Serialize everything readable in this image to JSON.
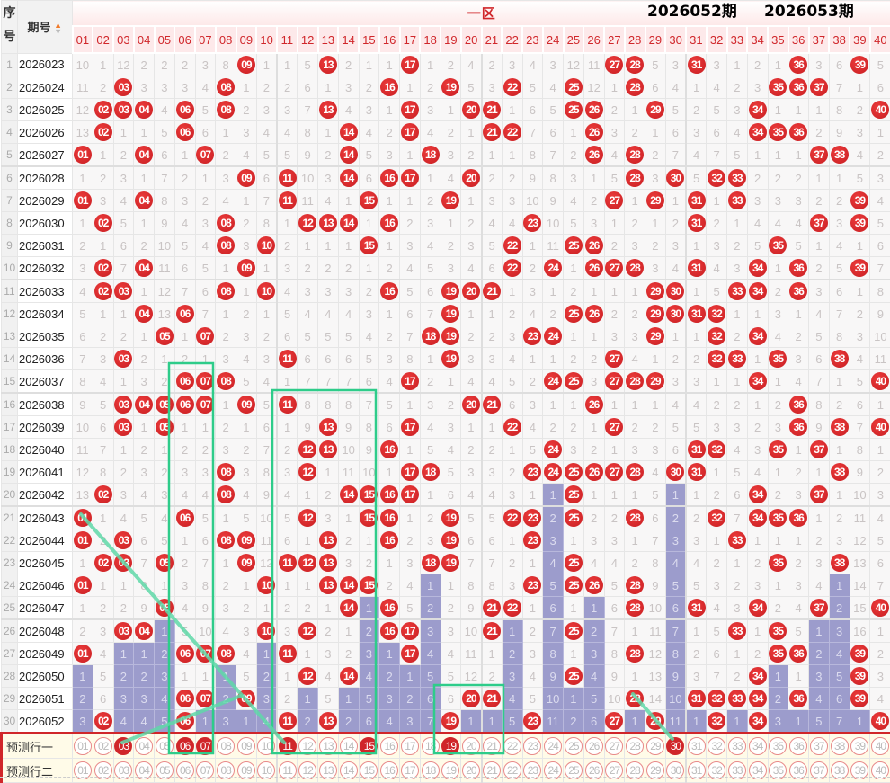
{
  "header": {
    "seq_label_top": "序",
    "seq_label_bottom": "号",
    "period_label": "期号",
    "zone_label": "一区",
    "columns": [
      "01",
      "02",
      "03",
      "04",
      "05",
      "06",
      "07",
      "08",
      "09",
      "10",
      "11",
      "12",
      "13",
      "14",
      "15",
      "16",
      "17",
      "18",
      "19",
      "20",
      "21",
      "22",
      "23",
      "24",
      "25",
      "26",
      "27",
      "28",
      "29",
      "30",
      "31",
      "32",
      "33",
      "34",
      "35",
      "36",
      "37",
      "38",
      "39",
      "40"
    ]
  },
  "rows": [
    {
      "seq": "1",
      "period": "2026023",
      "cells": [
        10,
        1,
        12,
        2,
        2,
        2,
        3,
        8,
        "09",
        1,
        1,
        5,
        "13",
        2,
        1,
        1,
        "17",
        1,
        2,
        4,
        2,
        3,
        4,
        3,
        12,
        11,
        "27",
        "28",
        5,
        3,
        "31",
        3,
        1,
        2,
        1,
        "36",
        3,
        6,
        "39",
        5
      ]
    },
    {
      "seq": "2",
      "period": "2026024",
      "cells": [
        11,
        2,
        "03",
        3,
        3,
        3,
        4,
        "08",
        1,
        2,
        2,
        6,
        1,
        3,
        2,
        "16",
        1,
        2,
        "19",
        5,
        3,
        "22",
        5,
        4,
        "25",
        12,
        1,
        "28",
        6,
        4,
        1,
        4,
        2,
        3,
        "35",
        "36",
        "37",
        7,
        1,
        6
      ]
    },
    {
      "seq": "3",
      "period": "2026025",
      "cells": [
        12,
        "02",
        "03",
        "04",
        4,
        "06",
        5,
        "08",
        2,
        3,
        3,
        7,
        "13",
        4,
        3,
        1,
        "17",
        3,
        1,
        "20",
        "21",
        1,
        6,
        5,
        "25",
        "26",
        2,
        1,
        "29",
        5,
        2,
        5,
        3,
        "34",
        1,
        1,
        1,
        8,
        2,
        "40"
      ]
    },
    {
      "seq": "4",
      "period": "2026026",
      "cells": [
        13,
        "02",
        1,
        1,
        5,
        "06",
        6,
        1,
        3,
        4,
        4,
        8,
        1,
        "14",
        4,
        2,
        "17",
        4,
        2,
        1,
        "21",
        "22",
        7,
        6,
        1,
        "26",
        3,
        2,
        1,
        6,
        3,
        6,
        4,
        "34",
        "35",
        "36",
        2,
        9,
        3,
        1
      ]
    },
    {
      "seq": "5",
      "period": "2026027",
      "cells": [
        "01",
        1,
        2,
        "04",
        6,
        1,
        "07",
        2,
        4,
        5,
        5,
        9,
        2,
        "14",
        5,
        3,
        1,
        "18",
        3,
        2,
        1,
        1,
        8,
        7,
        2,
        "26",
        4,
        "28",
        2,
        7,
        4,
        7,
        5,
        1,
        1,
        1,
        "37",
        "38",
        4,
        2
      ]
    },
    {
      "seq": "6",
      "period": "2026028",
      "cells": [
        1,
        2,
        3,
        1,
        7,
        2,
        1,
        3,
        "09",
        6,
        "11",
        10,
        3,
        "14",
        6,
        "16",
        "17",
        1,
        4,
        "20",
        2,
        2,
        9,
        8,
        3,
        1,
        5,
        "28",
        3,
        "30",
        5,
        "32",
        "33",
        2,
        2,
        2,
        1,
        1,
        5,
        3
      ]
    },
    {
      "seq": "7",
      "period": "2026029",
      "cells": [
        "01",
        3,
        4,
        "04",
        8,
        3,
        2,
        4,
        1,
        7,
        "11",
        11,
        4,
        1,
        "15",
        1,
        1,
        2,
        "19",
        1,
        3,
        3,
        10,
        9,
        4,
        2,
        "27",
        1,
        "29",
        1,
        "31",
        1,
        "33",
        3,
        3,
        3,
        2,
        2,
        "39",
        4
      ]
    },
    {
      "seq": "8",
      "period": "2026030",
      "cells": [
        1,
        "02",
        5,
        1,
        9,
        4,
        3,
        "08",
        2,
        8,
        1,
        "12",
        "13",
        "14",
        1,
        "16",
        2,
        3,
        1,
        2,
        4,
        4,
        "23",
        10,
        5,
        3,
        1,
        2,
        1,
        2,
        "31",
        2,
        1,
        4,
        4,
        4,
        "37",
        3,
        "39",
        5
      ]
    },
    {
      "seq": "9",
      "period": "2026031",
      "cells": [
        2,
        1,
        6,
        2,
        10,
        5,
        4,
        "08",
        3,
        "10",
        2,
        1,
        1,
        1,
        "15",
        1,
        3,
        4,
        2,
        3,
        5,
        "22",
        1,
        11,
        "25",
        "26",
        2,
        3,
        2,
        3,
        1,
        3,
        2,
        5,
        "35",
        5,
        1,
        4,
        1,
        6
      ]
    },
    {
      "seq": "10",
      "period": "2026032",
      "cells": [
        3,
        "02",
        7,
        "04",
        11,
        6,
        5,
        1,
        "09",
        1,
        3,
        2,
        2,
        2,
        1,
        2,
        4,
        5,
        3,
        4,
        6,
        "22",
        2,
        "24",
        1,
        "26",
        "27",
        "28",
        3,
        4,
        "31",
        4,
        3,
        "34",
        1,
        "36",
        2,
        5,
        "39",
        7
      ]
    },
    {
      "seq": "11",
      "period": "2026033",
      "cells": [
        4,
        "02",
        "03",
        1,
        12,
        7,
        6,
        "08",
        1,
        "10",
        4,
        3,
        3,
        3,
        2,
        "16",
        5,
        6,
        "19",
        "20",
        "21",
        1,
        3,
        1,
        2,
        1,
        1,
        1,
        "29",
        "30",
        1,
        5,
        "33",
        "34",
        2,
        "36",
        3,
        6,
        1,
        8
      ]
    },
    {
      "seq": "12",
      "period": "2026034",
      "cells": [
        5,
        1,
        1,
        "04",
        13,
        "06",
        7,
        1,
        2,
        1,
        5,
        4,
        4,
        4,
        3,
        1,
        6,
        7,
        "19",
        1,
        1,
        2,
        4,
        2,
        "25",
        "26",
        2,
        2,
        "29",
        "30",
        "31",
        "32",
        1,
        1,
        3,
        1,
        4,
        7,
        2,
        9
      ]
    },
    {
      "seq": "13",
      "period": "2026035",
      "cells": [
        6,
        2,
        2,
        1,
        "05",
        1,
        "07",
        2,
        3,
        2,
        6,
        5,
        5,
        5,
        4,
        2,
        7,
        "18",
        "19",
        2,
        2,
        3,
        "23",
        "24",
        1,
        1,
        3,
        3,
        "29",
        1,
        1,
        "32",
        2,
        "34",
        4,
        2,
        5,
        8,
        3,
        10
      ]
    },
    {
      "seq": "14",
      "period": "2026036",
      "cells": [
        7,
        3,
        "03",
        2,
        1,
        2,
        1,
        3,
        4,
        3,
        "11",
        6,
        6,
        6,
        5,
        3,
        8,
        1,
        "19",
        3,
        3,
        4,
        1,
        1,
        2,
        2,
        "27",
        4,
        1,
        2,
        2,
        "32",
        "33",
        1,
        "35",
        3,
        6,
        "38",
        4,
        11
      ]
    },
    {
      "seq": "15",
      "period": "2026037",
      "cells": [
        8,
        4,
        1,
        3,
        2,
        "06",
        "07",
        "08",
        5,
        4,
        1,
        7,
        7,
        7,
        6,
        4,
        "17",
        2,
        1,
        4,
        4,
        5,
        2,
        "24",
        "25",
        3,
        "27",
        "28",
        "29",
        3,
        3,
        1,
        1,
        "34",
        1,
        4,
        7,
        1,
        5,
        "40"
      ]
    },
    {
      "seq": "16",
      "period": "2026038",
      "cells": [
        9,
        5,
        "03",
        "04",
        "05",
        "06",
        "07",
        1,
        "09",
        5,
        "11",
        8,
        8,
        8,
        7,
        5,
        1,
        3,
        2,
        "20",
        "21",
        6,
        3,
        1,
        1,
        "26",
        1,
        1,
        1,
        4,
        4,
        2,
        2,
        1,
        2,
        "36",
        8,
        2,
        6,
        1
      ]
    },
    {
      "seq": "17",
      "period": "2026039",
      "cells": [
        10,
        6,
        "03",
        1,
        "05",
        1,
        1,
        2,
        1,
        6,
        1,
        9,
        "13",
        9,
        8,
        6,
        "17",
        4,
        3,
        1,
        1,
        "22",
        4,
        2,
        2,
        1,
        "27",
        2,
        2,
        5,
        5,
        3,
        3,
        2,
        3,
        "36",
        9,
        "38",
        7,
        "40"
      ]
    },
    {
      "seq": "18",
      "period": "2026040",
      "cells": [
        11,
        7,
        1,
        2,
        1,
        2,
        2,
        3,
        2,
        7,
        2,
        "12",
        "13",
        10,
        9,
        "16",
        1,
        5,
        4,
        2,
        2,
        1,
        5,
        "24",
        3,
        2,
        1,
        3,
        3,
        6,
        "31",
        "32",
        4,
        3,
        "35",
        1,
        "37",
        1,
        8,
        1
      ]
    },
    {
      "seq": "19",
      "period": "2026041",
      "cells": [
        12,
        8,
        2,
        3,
        2,
        3,
        3,
        "08",
        3,
        8,
        3,
        "12",
        1,
        11,
        10,
        1,
        "17",
        "18",
        5,
        3,
        3,
        2,
        "23",
        "24",
        "25",
        "26",
        "27",
        "28",
        4,
        "30",
        "31",
        1,
        5,
        4,
        1,
        2,
        1,
        "38",
        9,
        2
      ]
    },
    {
      "seq": "20",
      "period": "2026042",
      "cells": [
        13,
        "02",
        3,
        4,
        3,
        4,
        4,
        "08",
        4,
        9,
        4,
        1,
        2,
        "14",
        "15",
        "16",
        "17",
        1,
        6,
        4,
        4,
        3,
        1,
        1,
        "25",
        1,
        1,
        1,
        5,
        1,
        1,
        2,
        6,
        "34",
        2,
        3,
        "37",
        1,
        10,
        3
      ]
    },
    {
      "seq": "21",
      "period": "2026043",
      "cells": [
        "01",
        1,
        4,
        5,
        4,
        "06",
        5,
        1,
        5,
        10,
        5,
        "12",
        3,
        1,
        "15",
        "16",
        1,
        2,
        "19",
        5,
        5,
        "22",
        "23",
        2,
        "25",
        2,
        2,
        "28",
        6,
        2,
        2,
        "32",
        7,
        "34",
        "35",
        "36",
        1,
        2,
        11,
        4
      ]
    },
    {
      "seq": "22",
      "period": "2026044",
      "cells": [
        "01",
        2,
        "03",
        6,
        5,
        1,
        6,
        "08",
        "09",
        11,
        6,
        1,
        "13",
        2,
        1,
        "16",
        2,
        3,
        "19",
        6,
        6,
        1,
        "23",
        3,
        1,
        3,
        3,
        1,
        7,
        3,
        3,
        1,
        "33",
        1,
        1,
        1,
        2,
        3,
        12,
        5
      ]
    },
    {
      "seq": "23",
      "period": "2026045",
      "cells": [
        1,
        "02",
        "03",
        7,
        "05",
        2,
        7,
        1,
        "09",
        12,
        "11",
        "12",
        "13",
        3,
        2,
        1,
        3,
        "18",
        "19",
        7,
        7,
        2,
        1,
        4,
        "25",
        4,
        4,
        2,
        8,
        4,
        4,
        2,
        1,
        2,
        "35",
        2,
        3,
        "38",
        13,
        6
      ]
    },
    {
      "seq": "24",
      "period": "2026046",
      "cells": [
        "01",
        1,
        1,
        8,
        1,
        3,
        8,
        2,
        1,
        "10",
        1,
        1,
        "13",
        "14",
        "15",
        2,
        4,
        1,
        1,
        8,
        8,
        3,
        "23",
        5,
        "25",
        "26",
        5,
        "28",
        9,
        5,
        5,
        3,
        2,
        3,
        1,
        3,
        4,
        1,
        14,
        7
      ]
    },
    {
      "seq": "25",
      "period": "2026047",
      "cells": [
        1,
        2,
        2,
        9,
        "05",
        4,
        9,
        3,
        2,
        1,
        2,
        2,
        1,
        "14",
        1,
        "16",
        5,
        2,
        2,
        9,
        "21",
        "22",
        1,
        6,
        1,
        1,
        6,
        "28",
        10,
        6,
        "31",
        4,
        3,
        "34",
        2,
        4,
        "37",
        2,
        15,
        "40"
      ]
    },
    {
      "seq": "26",
      "period": "2026048",
      "cells": [
        2,
        3,
        "03",
        "04",
        1,
        5,
        10,
        4,
        3,
        "10",
        3,
        "12",
        2,
        1,
        2,
        "16",
        "17",
        3,
        3,
        10,
        "21",
        1,
        2,
        7,
        "25",
        2,
        7,
        1,
        11,
        7,
        1,
        5,
        "33",
        1,
        "35",
        5,
        1,
        3,
        16,
        1
      ]
    },
    {
      "seq": "27",
      "period": "2026049",
      "cells": [
        "01",
        4,
        1,
        1,
        2,
        "06",
        "07",
        "08",
        4,
        1,
        "11",
        1,
        3,
        2,
        3,
        1,
        "17",
        4,
        4,
        11,
        1,
        2,
        3,
        8,
        1,
        3,
        8,
        "28",
        12,
        8,
        2,
        6,
        1,
        2,
        "35",
        "36",
        2,
        4,
        "39",
        2
      ]
    },
    {
      "seq": "28",
      "period": "2026050",
      "cells": [
        1,
        5,
        2,
        2,
        3,
        1,
        1,
        1,
        5,
        2,
        1,
        "12",
        4,
        "14",
        4,
        2,
        1,
        5,
        5,
        12,
        2,
        3,
        4,
        9,
        "25",
        4,
        9,
        1,
        13,
        9,
        3,
        7,
        2,
        "34",
        1,
        1,
        3,
        5,
        "39",
        3
      ]
    },
    {
      "seq": "29",
      "period": "2026051",
      "cells": [
        2,
        6,
        3,
        3,
        4,
        "06",
        "07",
        2,
        "09",
        3,
        2,
        1,
        5,
        1,
        5,
        3,
        2,
        6,
        6,
        "20",
        "21",
        4,
        5,
        10,
        1,
        5,
        10,
        "28",
        14,
        10,
        "31",
        "32",
        "33",
        "34",
        2,
        "36",
        4,
        6,
        "39",
        4
      ]
    },
    {
      "seq": "30",
      "period": "2026052",
      "cells": [
        3,
        "02",
        4,
        4,
        5,
        "06",
        1,
        3,
        1,
        4,
        "11",
        2,
        "13",
        2,
        6,
        4,
        3,
        7,
        "19",
        1,
        1,
        5,
        "23",
        11,
        2,
        6,
        "27",
        1,
        "29",
        11,
        1,
        "32",
        1,
        "34",
        3,
        1,
        5,
        7,
        1,
        "40"
      ]
    }
  ],
  "prediction_rows": [
    {
      "label": "预测行一",
      "selected": [
        "03",
        "06",
        "07",
        "11",
        "15",
        "19",
        "30"
      ]
    },
    {
      "label": "预测行二",
      "selected": []
    }
  ],
  "annotations": {
    "current_period": "2026052期",
    "next_period": "2026053期"
  },
  "colors": {
    "hit_ball": "#d0262a",
    "omission_bar": "#9c9ccc",
    "annotation_green": "#2ecc8a"
  }
}
